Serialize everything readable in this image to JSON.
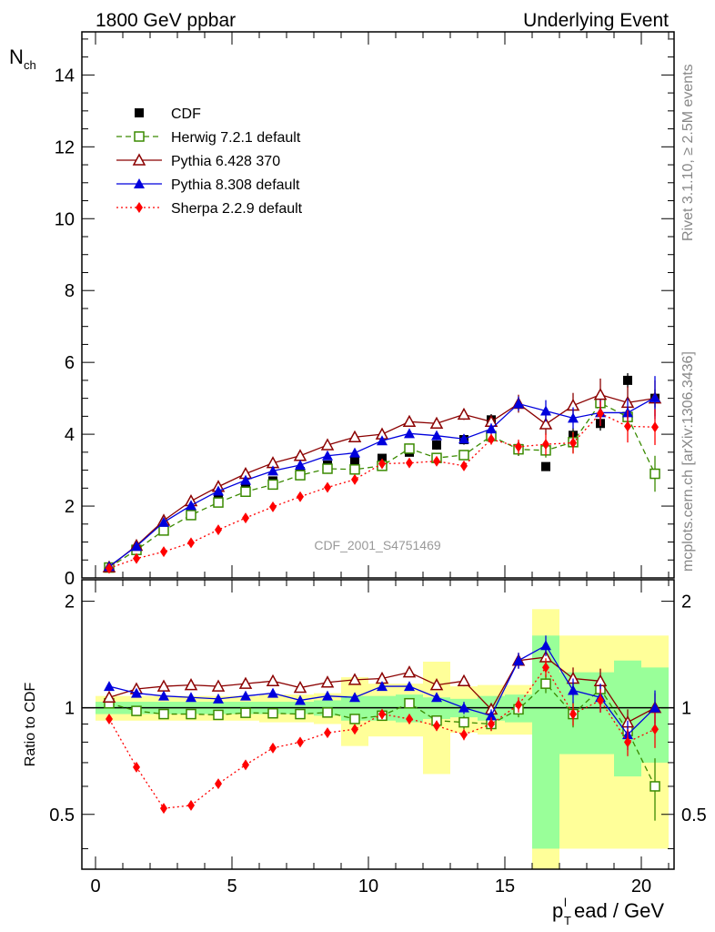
{
  "header": {
    "left": "1800 GeV ppbar",
    "right": "Underlying Event"
  },
  "side_labels": {
    "rivet": "Rivet 3.1.10, ≥ 2.5M events",
    "mcplots": "mcplots.cern.ch [arXiv:1306.3436]"
  },
  "watermark": "CDF_2001_S4751469",
  "chart_data": [
    {
      "type": "scatter",
      "panel": "main",
      "ylabel": "N_ch",
      "ylim": [
        0,
        15.2
      ],
      "yticks": [
        "0",
        "2",
        "4",
        "6",
        "8",
        "10",
        "12",
        "14"
      ],
      "x": [
        0.5,
        1.5,
        2.5,
        3.5,
        4.5,
        5.5,
        6.5,
        7.5,
        8.5,
        9.5,
        10.5,
        11.5,
        12.5,
        13.5,
        14.5,
        15.5,
        16.5,
        17.5,
        18.5,
        19.5,
        20.5
      ],
      "series": [
        {
          "name": "CDF",
          "color": "#000000",
          "marker": "square-filled",
          "values": [
            0.28,
            0.8,
            1.38,
            1.82,
            2.2,
            2.48,
            2.7,
            2.96,
            3.14,
            3.26,
            3.33,
            3.5,
            3.7,
            3.85,
            4.4,
            3.6,
            3.1,
            3.97,
            4.3,
            5.5,
            5.0
          ],
          "errors": [
            0.03,
            0.04,
            0.05,
            0.05,
            0.06,
            0.07,
            0.08,
            0.08,
            0.09,
            0.09,
            0.1,
            0.12,
            0.13,
            0.14,
            0.16,
            0.2,
            0.1,
            0.2,
            0.2,
            0.2,
            0.25
          ]
        },
        {
          "name": "Herwig 7.2.1 default",
          "color": "#3a8a00",
          "marker": "square-open",
          "dash": "6,4",
          "values": [
            0.29,
            0.78,
            1.32,
            1.75,
            2.1,
            2.4,
            2.6,
            2.86,
            3.04,
            3.02,
            3.12,
            3.6,
            3.34,
            3.42,
            3.95,
            3.58,
            3.55,
            3.78,
            4.87,
            4.48,
            2.9
          ],
          "errors": [
            0.02,
            0.03,
            0.04,
            0.05,
            0.05,
            0.05,
            0.06,
            0.06,
            0.07,
            0.08,
            0.08,
            0.1,
            0.1,
            0.12,
            0.15,
            0.18,
            0.2,
            0.3,
            0.3,
            0.4,
            0.5
          ]
        },
        {
          "name": "Pythia 6.428 370",
          "color": "#8b0000",
          "marker": "triangle-open",
          "dash": "",
          "values": [
            0.3,
            0.9,
            1.6,
            2.14,
            2.54,
            2.9,
            3.2,
            3.4,
            3.7,
            3.92,
            4.0,
            4.35,
            4.3,
            4.55,
            4.35,
            4.85,
            4.28,
            4.8,
            5.1,
            4.88,
            5.0
          ],
          "errors": [
            0.02,
            0.03,
            0.04,
            0.05,
            0.05,
            0.06,
            0.06,
            0.07,
            0.07,
            0.08,
            0.09,
            0.1,
            0.1,
            0.15,
            0.15,
            0.25,
            0.3,
            0.35,
            0.45,
            0.45,
            0.5
          ]
        },
        {
          "name": "Pythia 8.308 default",
          "color": "#0000dd",
          "marker": "triangle-filled",
          "dash": "",
          "values": [
            0.32,
            0.88,
            1.55,
            2.02,
            2.42,
            2.72,
            2.98,
            3.14,
            3.4,
            3.48,
            3.82,
            4.02,
            3.96,
            3.87,
            4.15,
            4.85,
            4.65,
            4.45,
            4.6,
            4.6,
            5.02
          ],
          "errors": [
            0.02,
            0.03,
            0.04,
            0.05,
            0.05,
            0.06,
            0.06,
            0.07,
            0.07,
            0.08,
            0.09,
            0.1,
            0.1,
            0.12,
            0.15,
            0.2,
            0.3,
            0.3,
            0.35,
            0.4,
            0.6
          ]
        },
        {
          "name": "Sherpa 2.2.9 default",
          "color": "#ff0000",
          "marker": "diamond-filled",
          "dash": "2,3",
          "values": [
            0.27,
            0.54,
            0.73,
            0.98,
            1.34,
            1.67,
            1.98,
            2.26,
            2.52,
            2.74,
            3.18,
            3.2,
            3.25,
            3.12,
            3.86,
            3.65,
            3.72,
            3.76,
            4.58,
            4.22,
            4.2
          ],
          "errors": [
            0.02,
            0.02,
            0.03,
            0.04,
            0.05,
            0.05,
            0.06,
            0.06,
            0.07,
            0.08,
            0.09,
            0.1,
            0.12,
            0.12,
            0.15,
            0.2,
            0.3,
            0.3,
            0.35,
            0.45,
            0.5
          ]
        }
      ]
    },
    {
      "type": "scatter",
      "panel": "ratio",
      "ylabel": "Ratio to CDF",
      "xlabel": "p_T^lead / GeV",
      "ylim": [
        0.35,
        2.3
      ],
      "yscale": "log",
      "yticks": [
        "0.5",
        "1",
        "2"
      ],
      "xlim": [
        -0.5,
        21.2
      ],
      "xticks": [
        "0",
        "5",
        "10",
        "15",
        "20"
      ],
      "x": [
        0.5,
        1.5,
        2.5,
        3.5,
        4.5,
        5.5,
        6.5,
        7.5,
        8.5,
        9.5,
        10.5,
        11.5,
        12.5,
        13.5,
        14.5,
        15.5,
        16.5,
        17.5,
        18.5,
        19.5,
        20.5
      ],
      "bands": {
        "green_half_width": [
          0.04,
          0.04,
          0.04,
          0.04,
          0.04,
          0.04,
          0.04,
          0.04,
          0.05,
          0.08,
          0.08,
          0.09,
          0.07,
          0.06,
          0.08,
          0.09,
          0.6,
          0.26,
          0.26,
          0.36,
          0.3
        ],
        "yellow_half_width": [
          0.08,
          0.08,
          0.08,
          0.08,
          0.08,
          0.08,
          0.09,
          0.09,
          0.1,
          0.22,
          0.17,
          0.17,
          0.35,
          0.15,
          0.16,
          0.16,
          0.9,
          0.6,
          0.6,
          0.6,
          0.6
        ]
      },
      "series": [
        {
          "name": "Herwig 7.2.1 default",
          "values": [
            1.03,
            0.98,
            0.96,
            0.96,
            0.955,
            0.968,
            0.965,
            0.96,
            0.97,
            0.93,
            0.95,
            1.03,
            0.92,
            0.91,
            0.9,
            0.99,
            1.17,
            0.96,
            1.13,
            0.86,
            0.6
          ],
          "errors": [
            0.01,
            0.01,
            0.01,
            0.01,
            0.01,
            0.01,
            0.01,
            0.01,
            0.01,
            0.02,
            0.02,
            0.02,
            0.03,
            0.04,
            0.04,
            0.05,
            0.07,
            0.08,
            0.08,
            0.08,
            0.12
          ]
        },
        {
          "name": "Pythia 6.428 370",
          "values": [
            1.07,
            1.13,
            1.15,
            1.16,
            1.15,
            1.17,
            1.19,
            1.14,
            1.18,
            1.2,
            1.21,
            1.26,
            1.16,
            1.19,
            0.99,
            1.36,
            1.39,
            1.21,
            1.19,
            0.91,
            1.0
          ],
          "errors": [
            0.01,
            0.01,
            0.02,
            0.02,
            0.02,
            0.02,
            0.02,
            0.02,
            0.02,
            0.03,
            0.03,
            0.03,
            0.03,
            0.04,
            0.04,
            0.07,
            0.1,
            0.09,
            0.1,
            0.08,
            0.1
          ]
        },
        {
          "name": "Pythia 8.308 default",
          "values": [
            1.15,
            1.1,
            1.08,
            1.07,
            1.06,
            1.08,
            1.1,
            1.05,
            1.08,
            1.07,
            1.15,
            1.15,
            1.07,
            1.0,
            0.95,
            1.36,
            1.5,
            1.12,
            1.07,
            0.84,
            1.0
          ],
          "errors": [
            0.01,
            0.01,
            0.02,
            0.02,
            0.02,
            0.02,
            0.02,
            0.02,
            0.02,
            0.03,
            0.03,
            0.03,
            0.03,
            0.04,
            0.04,
            0.07,
            0.1,
            0.09,
            0.1,
            0.08,
            0.12
          ]
        },
        {
          "name": "Sherpa 2.2.9 default",
          "values": [
            0.93,
            0.68,
            0.52,
            0.53,
            0.61,
            0.69,
            0.77,
            0.8,
            0.85,
            0.87,
            0.96,
            0.93,
            0.89,
            0.84,
            0.9,
            1.02,
            1.3,
            0.96,
            1.05,
            0.8,
            0.87
          ],
          "errors": [
            0.01,
            0.01,
            0.01,
            0.01,
            0.01,
            0.01,
            0.02,
            0.02,
            0.02,
            0.02,
            0.03,
            0.03,
            0.03,
            0.03,
            0.04,
            0.05,
            0.08,
            0.07,
            0.08,
            0.07,
            0.1
          ]
        }
      ]
    }
  ]
}
